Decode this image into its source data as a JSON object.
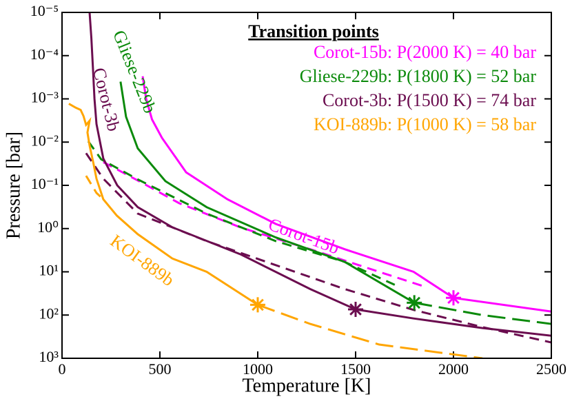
{
  "chart_data": {
    "type": "line",
    "xlabel": "Temperature [K]",
    "ylabel": "Pressure [bar]",
    "xlim": [
      0,
      2500
    ],
    "xticks": [
      0,
      500,
      1000,
      1500,
      2000,
      2500
    ],
    "ylim": [
      1e-05,
      1000
    ],
    "yscale": "log",
    "y_inverted": true,
    "yticks": [
      {
        "value": 1e-05,
        "label": "10⁻⁵"
      },
      {
        "value": 0.0001,
        "label": "10⁻⁴"
      },
      {
        "value": 0.001,
        "label": "10⁻³"
      },
      {
        "value": 0.01,
        "label": "10⁻²"
      },
      {
        "value": 0.1,
        "label": "10⁻¹"
      },
      {
        "value": 1,
        "label": "10⁰"
      },
      {
        "value": 10,
        "label": "10¹"
      },
      {
        "value": 100,
        "label": "10²"
      },
      {
        "value": 1000,
        "label": "10³"
      }
    ],
    "series": [
      {
        "color": "#ff00ff",
        "dash": "solid",
        "x": [
          412,
          430,
          460,
          511,
          634,
          845,
          1092,
          1444,
          1796,
          2000,
          2500
        ],
        "values": [
          0.0003,
          0.001,
          0.003,
          0.008,
          0.05,
          0.21,
          0.78,
          3,
          10,
          40,
          83
        ]
      },
      {
        "color": "#ff00ff",
        "dash": "dashed",
        "x": [
          211,
          387,
          599,
          915,
          1268,
          1620,
          1866
        ],
        "values": [
          0.029,
          0.077,
          0.26,
          0.95,
          3,
          10,
          23
        ]
      },
      {
        "color": "#0b8a0b",
        "dash": "solid",
        "x": [
          299,
          327,
          387,
          528,
          739,
          1092,
          1444,
          1800
        ],
        "values": [
          0.0004,
          0.0026,
          0.014,
          0.08,
          0.32,
          1.6,
          5.9,
          52
        ]
      },
      {
        "color": "#0b8a0b",
        "dash": "long",
        "x": [
          1800,
          2148,
          2500
        ],
        "values": [
          52,
          100,
          160
        ]
      },
      {
        "color": "#0b8a0b",
        "dash": "dashed",
        "x": [
          134,
          200,
          387,
          739,
          1092,
          1444,
          1700
        ],
        "values": [
          0.0096,
          0.025,
          0.073,
          0.45,
          1.95,
          5.9,
          20
        ]
      },
      {
        "color": "#6b0d4f",
        "dash": "solid",
        "x": [
          141,
          150,
          158,
          166,
          176,
          211,
          282,
          387,
          563,
          915,
          1268,
          1500,
          1796,
          2148,
          2500
        ],
        "values": [
          1e-05,
          4e-05,
          0.0002,
          0.001,
          0.0038,
          0.024,
          0.1,
          0.32,
          0.93,
          4,
          25,
          74,
          120,
          200,
          300
        ]
      },
      {
        "color": "#6b0d4f",
        "dash": "dashed",
        "x": [
          123,
          211,
          387,
          739,
          1092,
          1444,
          1796,
          2148,
          2500
        ],
        "values": [
          0.018,
          0.07,
          0.45,
          1.95,
          7,
          25,
          76,
          190,
          430
        ]
      },
      {
        "color": "#ffa500",
        "dash": "solid",
        "x": [
          35,
          70,
          95,
          110,
          123,
          141,
          130,
          141,
          160,
          176,
          211,
          280,
          387,
          563,
          739,
          1000
        ],
        "values": [
          0.0013,
          0.0016,
          0.0018,
          0.0025,
          0.004,
          0.0032,
          0.006,
          0.012,
          0.03,
          0.07,
          0.21,
          0.5,
          1.35,
          4.9,
          10,
          58
        ]
      },
      {
        "color": "#ffa500",
        "dash": "long",
        "x": [
          1000,
          1268,
          1620,
          2148
        ],
        "values": [
          58,
          160,
          480,
          1000
        ]
      },
      {
        "color": "#ffa500",
        "dash": "dashed",
        "x": [
          123,
          176,
          211
        ],
        "values": [
          0.06,
          0.15,
          0.21
        ]
      }
    ],
    "markers": {
      "x": [
        2000,
        1800,
        1500,
        1000
      ],
      "values": [
        40,
        52,
        74,
        58
      ],
      "colors": [
        "#ff00ff",
        "#0b8a0b",
        "#6b0d4f",
        "#ffa500"
      ]
    },
    "curve_labels": [
      {
        "text": "Gliese-229b",
        "color": "#0b8a0b"
      },
      {
        "text": "Corot-3b",
        "color": "#6b0d4f"
      },
      {
        "text": "Corot-15b",
        "color": "#ff00ff"
      },
      {
        "text": "KOI-889b",
        "color": "#ffa500"
      }
    ],
    "transition_points": {
      "title": "Transition points",
      "items": [
        {
          "text": "Corot-15b: P(2000 K) = 40 bar",
          "color": "#ff00ff"
        },
        {
          "text": "Gliese-229b: P(1800 K) = 52 bar",
          "color": "#0b8a0b"
        },
        {
          "text": "Corot-3b: P(1500 K) = 74 bar",
          "color": "#6b0d4f"
        },
        {
          "text": "KOI-889b: P(1000 K) = 58 bar",
          "color": "#ffa500"
        }
      ]
    }
  }
}
